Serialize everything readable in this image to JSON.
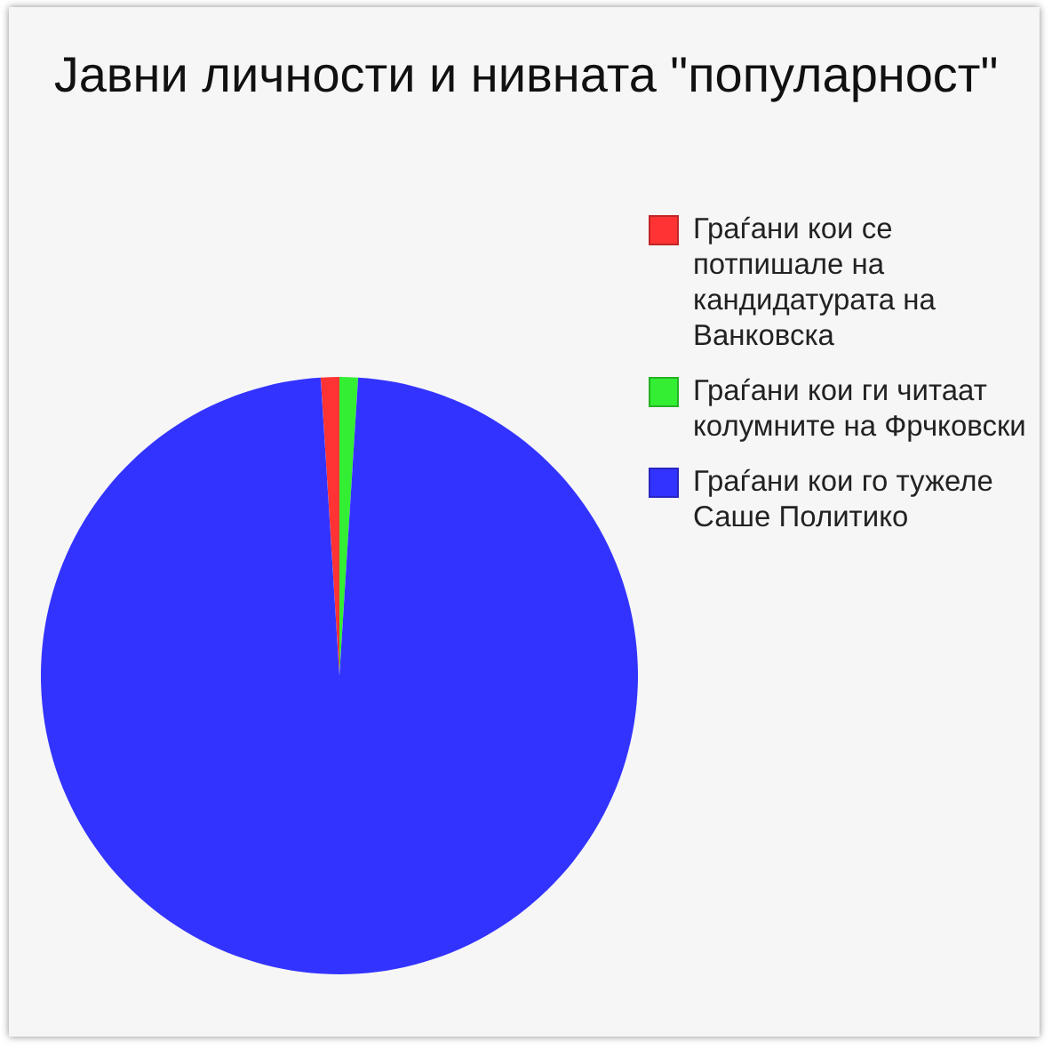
{
  "chart_data": {
    "type": "pie",
    "title": "Јавни личности и нивната \"популарност\"",
    "categories": [
      "Граѓани кои се потпишале на кандидатурата на Ванковска",
      "Граѓани кои ги читаат колумните на Фрчковски",
      "Граѓани кои го тужеле Саше Политико"
    ],
    "values": [
      1,
      1,
      98
    ],
    "colors": [
      "#ff3333",
      "#33ee33",
      "#3333ff"
    ],
    "legend": "top right"
  }
}
